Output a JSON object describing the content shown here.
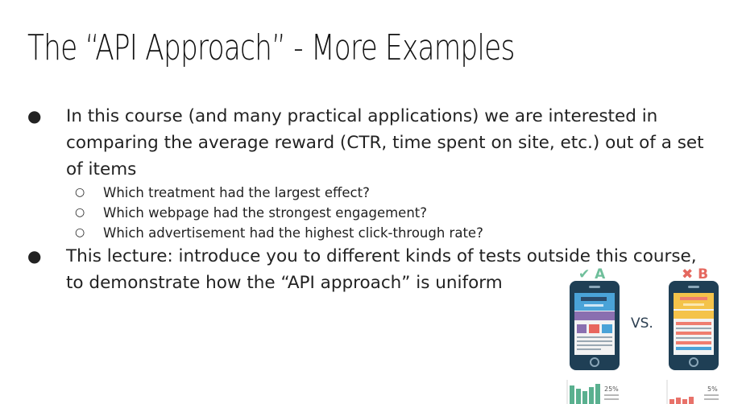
{
  "slide": {
    "title": "The “API Approach” - More Examples",
    "bullets": [
      {
        "text": "In this course (and many practical applications) we are interested in comparing the average reward (CTR, time spent on site, etc.) out of a set of items",
        "sub": [
          "Which treatment had the largest effect?",
          "Which webpage had the strongest engagement?",
          "Which advertisement had the highest click-through rate?"
        ]
      },
      {
        "text": "This lecture: introduce you to different kinds of tests outside this course, to demonstrate how the “API approach” is uniform",
        "sub": []
      }
    ],
    "bullet_symbol": "●",
    "sub_bullet_symbol": "○"
  },
  "illustration": {
    "variant_a_label": "✔ A",
    "variant_b_label": "✖ B",
    "vs_label": "VS.",
    "a_percent": "25%",
    "b_percent": "5%",
    "colors": {
      "a_label": "#6fbf9b",
      "b_label": "#e5685f",
      "phone": "#1f3f55",
      "screen": "#f3f3f3",
      "bar_a": "#5ab08f",
      "bar_b": "#e8726a",
      "header_a": "#2b4a6a",
      "tile_blue": "#4aa3d8",
      "tile_red": "#e8665e",
      "tile_purple": "#8a6fb0",
      "yellow": "#f4c34a",
      "pink": "#ef7d6f"
    }
  }
}
